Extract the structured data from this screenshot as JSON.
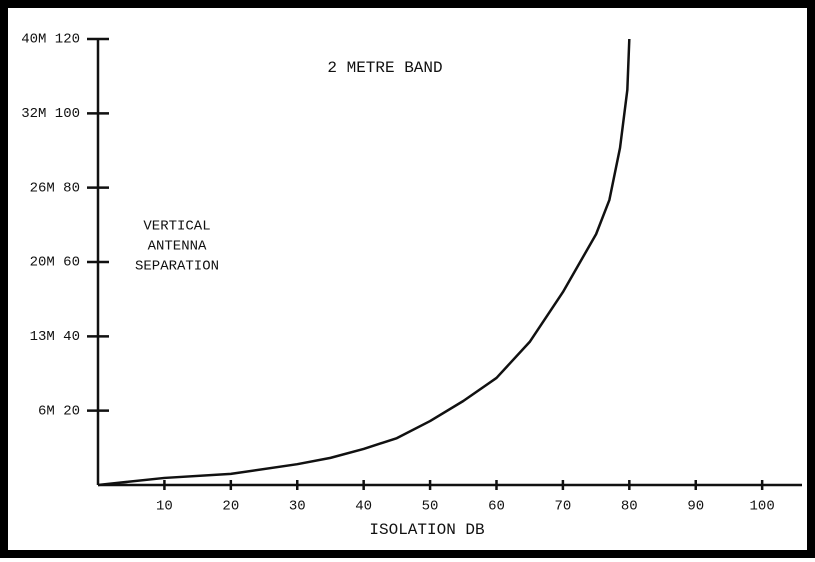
{
  "chart_data": {
    "type": "line",
    "title": "2 METRE BAND",
    "xlabel": "ISOLATION DB",
    "ylabel": [
      "VERTICAL",
      "ANTENNA",
      "SEPARATION"
    ],
    "x": [
      0,
      10,
      20,
      30,
      35,
      40,
      45,
      50,
      55,
      60,
      65,
      70,
      75,
      77,
      78.6,
      79.7,
      80
    ],
    "series": [
      {
        "color": "#111111",
        "values": [
          0,
          1.9,
          3,
          5.6,
          7.3,
          9.7,
          12.6,
          17.2,
          22.6,
          28.8,
          38.5,
          51.9,
          67.5,
          76.7,
          90.7,
          106.3,
          120
        ]
      }
    ],
    "xlim": [
      0,
      106
    ],
    "ylim": [
      0,
      120
    ],
    "xticks": [
      10,
      20,
      30,
      40,
      50,
      60,
      70,
      80,
      90,
      100
    ],
    "yticks": [
      {
        "value": 20,
        "label": "6M  20"
      },
      {
        "value": 40,
        "label": "13M 40"
      },
      {
        "value": 60,
        "label": "20M 60"
      },
      {
        "value": 80,
        "label": "26M 80"
      },
      {
        "value": 100,
        "label": "32M 100"
      },
      {
        "value": 120,
        "label": "40M 120"
      }
    ]
  }
}
